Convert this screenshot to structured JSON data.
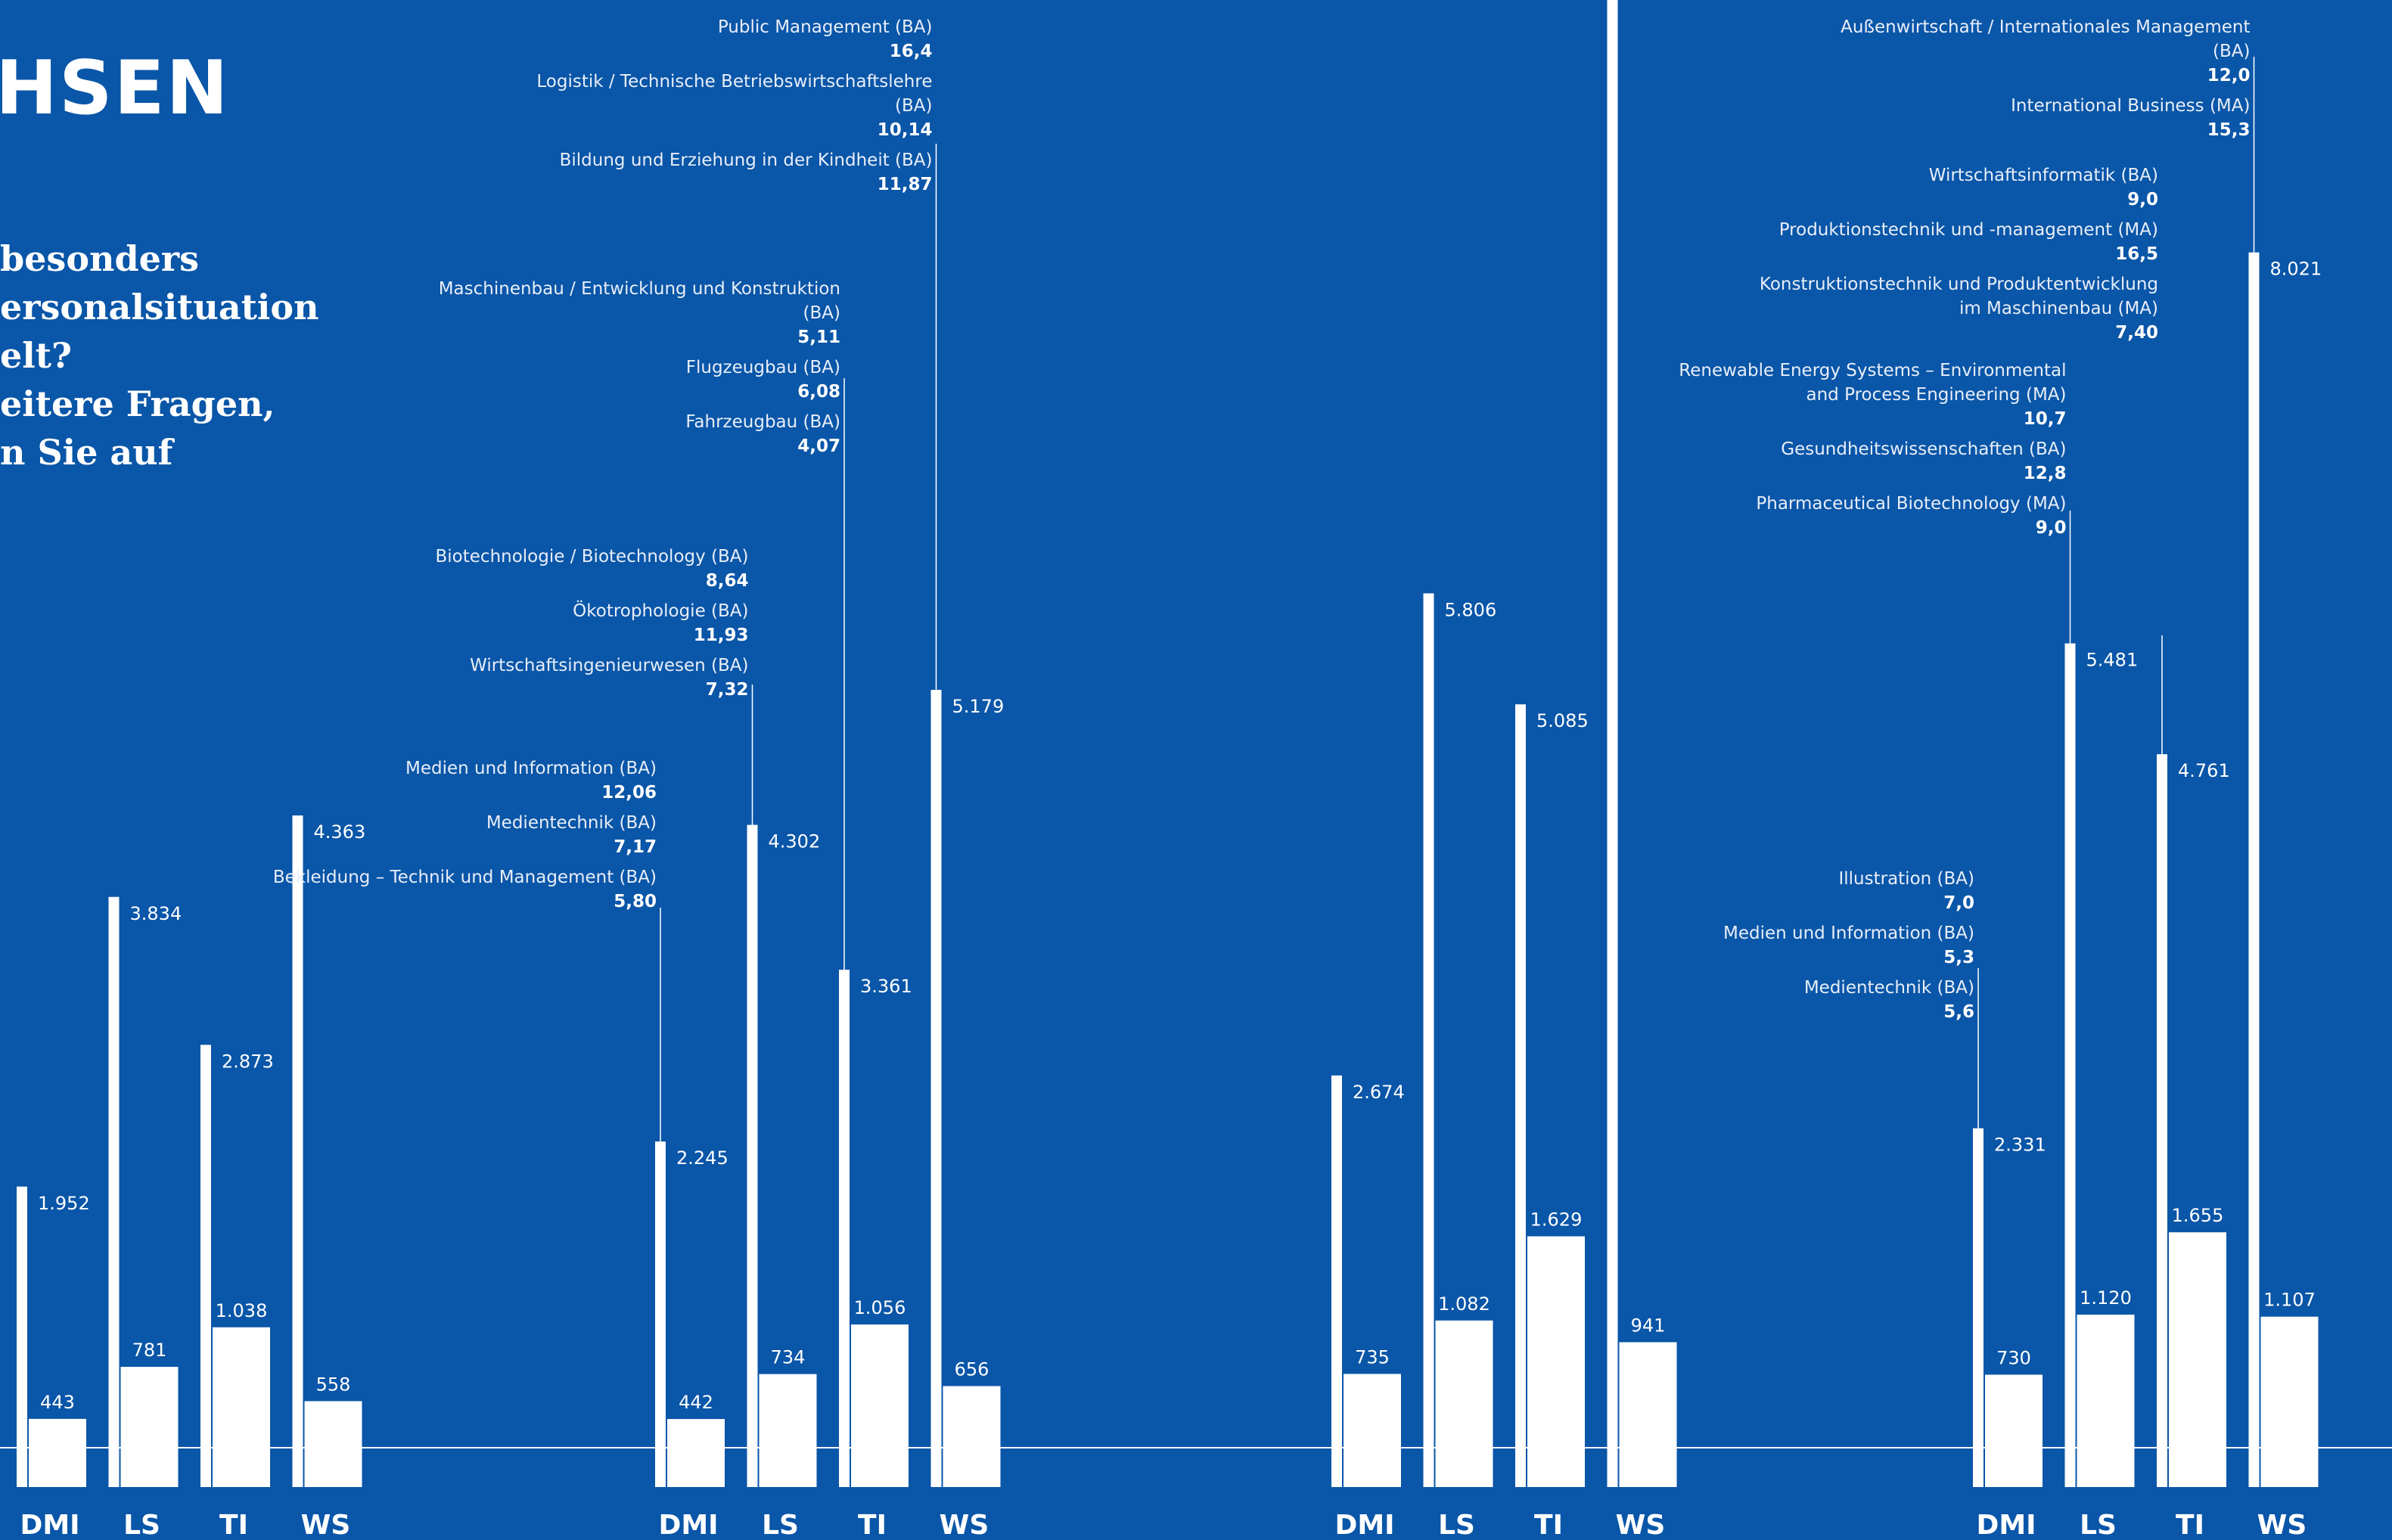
{
  "page": {
    "title_fragment": "HSEN",
    "question_lines": [
      "besonders",
      "ersonalsituation",
      "elt?",
      "eitere Fragen,",
      "n Sie auf"
    ]
  },
  "colors": {
    "background": "#0a56a8",
    "bars": "#ffffff"
  },
  "chart_data": [
    {
      "type": "bar",
      "categories": [
        "DMI",
        "LS",
        "TI",
        "WS"
      ],
      "series": [
        {
          "values": [
            1952,
            3834,
            2873,
            4363
          ]
        },
        {
          "values": [
            443,
            781,
            1038,
            558
          ]
        }
      ],
      "value_labels": [
        [
          "1.952",
          "3.834",
          "2.873",
          "4.363"
        ],
        [
          "443",
          "781",
          "1.038",
          "558"
        ]
      ],
      "ylim": [
        0,
        8021
      ],
      "annotations": []
    },
    {
      "type": "bar",
      "categories": [
        "DMI",
        "LS",
        "TI",
        "WS"
      ],
      "series": [
        {
          "values": [
            2245,
            4302,
            3361,
            5179
          ]
        },
        {
          "values": [
            442,
            734,
            1056,
            656
          ]
        }
      ],
      "value_labels": [
        [
          "2.245",
          "4.302",
          "3.361",
          "5.179"
        ],
        [
          "442",
          "734",
          "1.056",
          "656"
        ]
      ],
      "ylim": [
        0,
        8021
      ],
      "annotations": [
        {
          "category": "DMI",
          "items": [
            {
              "name": "Medien und Information (BA)",
              "value": "12,06"
            },
            {
              "name": "Medientechnik (BA)",
              "value": "7,17"
            },
            {
              "name": "Bekleidung – Technik und Management (BA)",
              "value": "5,80"
            }
          ]
        },
        {
          "category": "LS",
          "items": [
            {
              "name": "Biotechnologie / Biotechnology (BA)",
              "value": "8,64"
            },
            {
              "name": "Ökotrophologie (BA)",
              "value": "11,93"
            },
            {
              "name": "Wirtschaftsingenieurwesen (BA)",
              "value": "7,32"
            }
          ]
        },
        {
          "category": "TI",
          "items": [
            {
              "name": "Maschinenbau / Entwicklung und Konstruktion (BA)",
              "value": "5,11"
            },
            {
              "name": "Flugzeugbau (BA)",
              "value": "6,08"
            },
            {
              "name": "Fahrzeugbau (BA)",
              "value": "4,07"
            }
          ]
        },
        {
          "category": "WS",
          "items": [
            {
              "name": "Public Management (BA)",
              "value": "16,4"
            },
            {
              "name": "Logistik / Technische Betriebswirtschaftslehre (BA)",
              "value": "10,14"
            },
            {
              "name": "Bildung und Erziehung in der Kindheit (BA)",
              "value": "11,87"
            }
          ]
        }
      ]
    },
    {
      "type": "bar",
      "categories": [
        "DMI",
        "LS",
        "TI",
        "WS"
      ],
      "series": [
        {
          "values": [
            2674,
            5806,
            5085,
            null
          ]
        },
        {
          "values": [
            735,
            1082,
            1629,
            941
          ]
        }
      ],
      "value_labels": [
        [
          "2.674",
          "5.806",
          "5.085",
          ""
        ],
        [
          "735",
          "1.082",
          "1.629",
          "941"
        ]
      ],
      "ylim": [
        0,
        8021
      ],
      "annotations": []
    },
    {
      "type": "bar",
      "categories": [
        "DMI",
        "LS",
        "TI",
        "WS"
      ],
      "series": [
        {
          "values": [
            2331,
            5481,
            4761,
            8021
          ]
        },
        {
          "values": [
            730,
            1120,
            1655,
            1107
          ]
        }
      ],
      "value_labels": [
        [
          "2.331",
          "5.481",
          "4.761",
          "8.021"
        ],
        [
          "730",
          "1.120",
          "1.655",
          "1.107"
        ]
      ],
      "ylim": [
        0,
        8021
      ],
      "annotations": [
        {
          "category": "DMI",
          "items": [
            {
              "name": "Illustration (BA)",
              "value": "7,0"
            },
            {
              "name": "Medien und Information (BA)",
              "value": "5,3"
            },
            {
              "name": "Medientechnik (BA)",
              "value": "5,6"
            }
          ]
        },
        {
          "category": "LS",
          "items": [
            {
              "name": "Renewable Energy Systems – Environmental and Process Engineering (MA)",
              "value": "10,7"
            },
            {
              "name": "Gesundheitswissenschaften (BA)",
              "value": "12,8"
            },
            {
              "name": "Pharmaceutical Biotechnology (MA)",
              "value": "9,0"
            }
          ]
        },
        {
          "category": "TI",
          "items": [
            {
              "name": "Wirtschaftsinformatik (BA)",
              "value": "9,0"
            },
            {
              "name": "Produktionstechnik und -management (MA)",
              "value": "16,5"
            },
            {
              "name": "Konstruktionstechnik und Produktentwicklung im Maschinenbau (MA)",
              "value": "7,40"
            }
          ]
        },
        {
          "category": "WS",
          "items": [
            {
              "name": "Außenwirtschaft / Internationales Management (BA)",
              "value": "12,0"
            },
            {
              "name": "International Business (MA)",
              "value": "15,3"
            }
          ]
        }
      ]
    }
  ]
}
